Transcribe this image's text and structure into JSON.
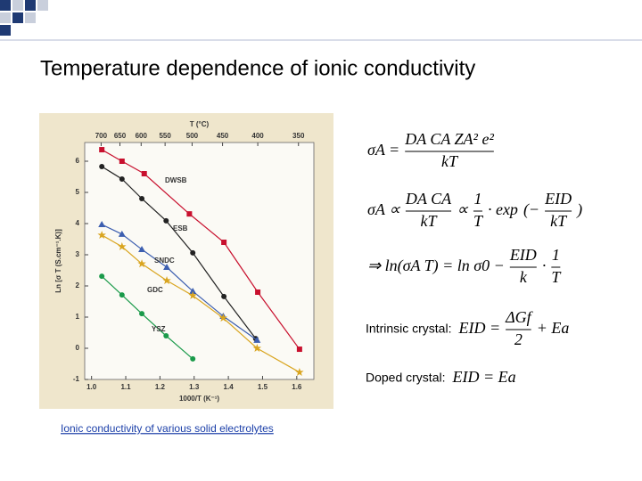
{
  "title": "Temperature dependence of ionic conductivity",
  "caption": "Ionic conductivity of various solid electrolytes",
  "chart_data": {
    "type": "scatter",
    "title": "T (°C)",
    "x_label": "1000/T (K⁻¹)",
    "y_label": "Ln [σ T (S.cm⁻¹.K)]",
    "xlim": [
      0.98,
      1.65
    ],
    "ylim": [
      -1,
      6.6
    ],
    "xticks": [
      {
        "value": 1,
        "label": "1.0"
      },
      1.1,
      1.2,
      1.3,
      1.4,
      1.5,
      1.6
    ],
    "yticks": [
      -1,
      0,
      1,
      2,
      3,
      4,
      5,
      6
    ],
    "x2ticks": [
      {
        "value": 1.028,
        "label": "700"
      },
      {
        "value": 1.083,
        "label": "650"
      },
      {
        "value": 1.145,
        "label": "600"
      },
      {
        "value": 1.215,
        "label": "550"
      },
      {
        "value": 1.294,
        "label": "500"
      },
      {
        "value": 1.383,
        "label": "450"
      },
      {
        "value": 1.486,
        "label": "400"
      },
      {
        "value": 1.605,
        "label": "350"
      }
    ],
    "series": [
      {
        "name": "DWSB",
        "color": "#c8102e",
        "marker": "square",
        "x": [
          1.03,
          1.089,
          1.154,
          1.286,
          1.387,
          1.486,
          1.608
        ],
        "values": [
          6.37,
          6.0,
          5.6,
          4.31,
          3.4,
          1.8,
          -0.03
        ]
      },
      {
        "name": "ESB",
        "color": "#222222",
        "marker": "circle",
        "x": [
          1.03,
          1.089,
          1.147,
          1.218,
          1.296,
          1.387,
          1.48
        ],
        "values": [
          5.83,
          5.43,
          4.8,
          4.09,
          3.06,
          1.66,
          0.31
        ]
      },
      {
        "name": "SNDC",
        "color": "#3d5fb0",
        "marker": "triangle",
        "x": [
          1.03,
          1.089,
          1.147,
          1.22,
          1.296,
          1.385,
          1.484
        ],
        "values": [
          3.97,
          3.66,
          3.17,
          2.6,
          1.83,
          1.03,
          0.26
        ]
      },
      {
        "name": "GDC",
        "color": "#d9a520",
        "marker": "star",
        "x": [
          1.03,
          1.089,
          1.147,
          1.22,
          1.296,
          1.385,
          1.484,
          1.608
        ],
        "values": [
          3.63,
          3.26,
          2.71,
          2.17,
          1.69,
          0.97,
          0,
          -0.77
        ]
      },
      {
        "name": "YSZ",
        "color": "#1a9a4a",
        "marker": "circle",
        "x": [
          1.03,
          1.089,
          1.147,
          1.218,
          1.296
        ],
        "values": [
          2.31,
          1.71,
          1.11,
          0.4,
          -0.34
        ]
      }
    ]
  },
  "equations": [
    {
      "items": [
        {
          "text": "σA ="
        },
        {
          "num": "DA CA ZA² e²",
          "den": "kT"
        }
      ]
    },
    {
      "items": [
        {
          "text": "σA ∝"
        },
        {
          "num": "DA CA",
          "den": "kT"
        },
        {
          "text": "∝"
        },
        {
          "num": "1",
          "den": "T"
        },
        {
          "text": "· exp"
        },
        {
          "text": "(−"
        },
        {
          "num": "EID",
          "den": "kT"
        },
        {
          "text": ")"
        }
      ]
    },
    {
      "items": [
        {
          "text": "⇒ ln(σA T) = ln σ0 −"
        },
        {
          "num": "EID",
          "den": "k"
        },
        {
          "text": "·"
        },
        {
          "num": "1",
          "den": "T"
        }
      ]
    }
  ],
  "conditions": [
    {
      "label": "Intrinsic crystal:",
      "items": [
        {
          "text": "EID ="
        },
        {
          "num": "ΔGf",
          "den": "2"
        },
        {
          "text": "+ Ea"
        }
      ]
    },
    {
      "label": "Doped crystal:",
      "items": [
        {
          "text": "EID = Ea"
        }
      ]
    }
  ]
}
